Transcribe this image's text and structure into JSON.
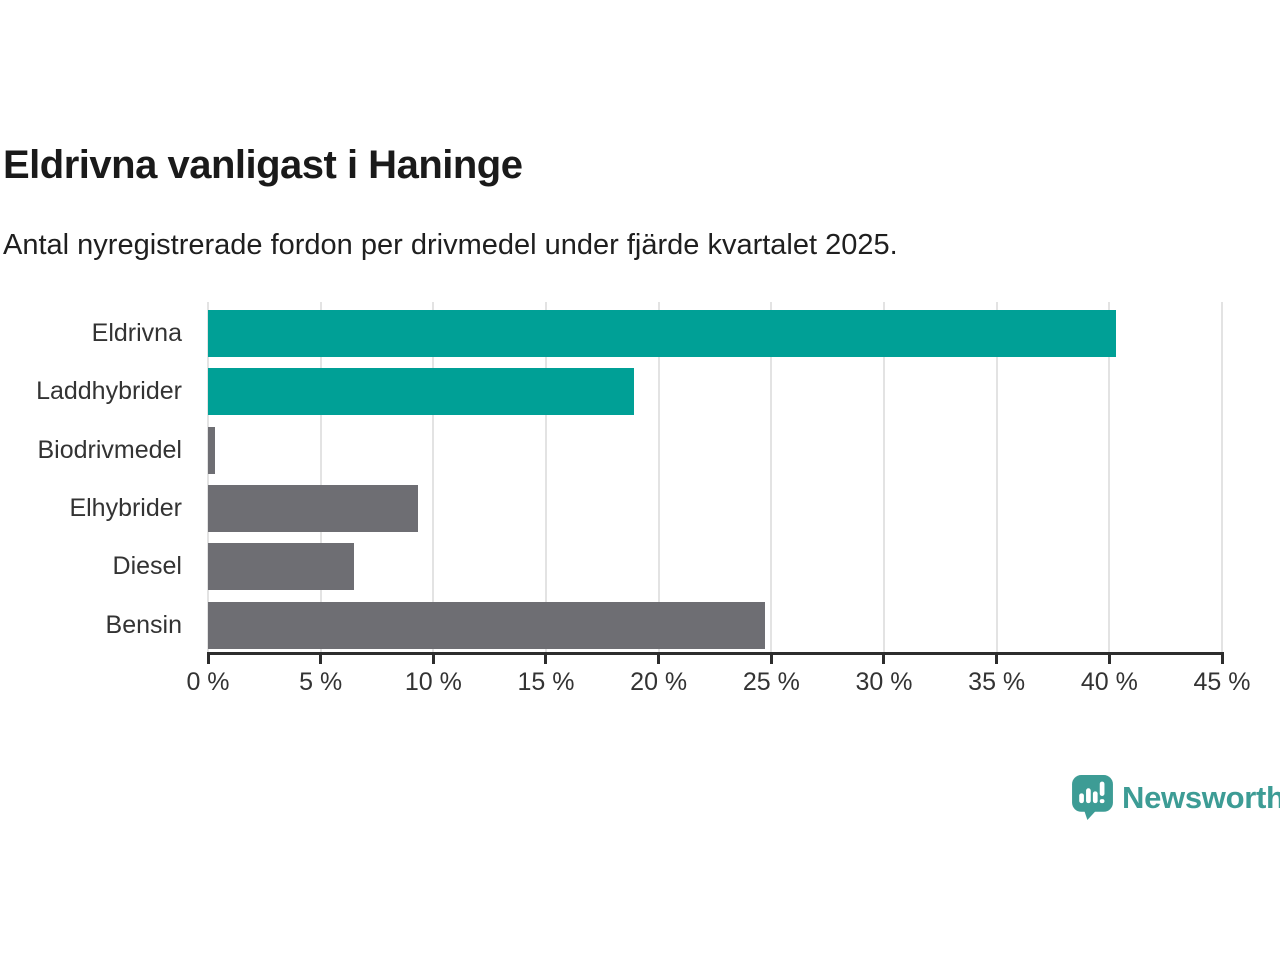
{
  "header": {
    "title": "Eldrivna vanligast i Haninge",
    "subtitle": "Antal nyregistrerade fordon per drivmedel under fjärde kvartalet 2025."
  },
  "chart_data": {
    "type": "bar",
    "orientation": "horizontal",
    "title": "Eldrivna vanligast i Haninge",
    "subtitle": "Antal nyregistrerade fordon per drivmedel under fjärde kvartalet 2025.",
    "categories": [
      "Eldrivna",
      "Laddhybrider",
      "Biodrivmedel",
      "Elhybrider",
      "Diesel",
      "Bensin"
    ],
    "values": [
      40.3,
      18.9,
      0.3,
      9.3,
      6.5,
      24.7
    ],
    "unit": "%",
    "bar_colors": [
      "#00a096",
      "#00a096",
      "#6e6e73",
      "#6e6e73",
      "#6e6e73",
      "#6e6e73"
    ],
    "xlim": [
      0,
      45
    ],
    "xticks": [
      0,
      5,
      10,
      15,
      20,
      25,
      30,
      35,
      40,
      45
    ],
    "xtick_labels": [
      "0 %",
      "5 %",
      "10 %",
      "15 %",
      "20 %",
      "25 %",
      "30 %",
      "35 %",
      "40 %",
      "45 %"
    ],
    "grid": "vertical-gridlines",
    "legend": "none"
  },
  "colors": {
    "highlight": "#00a096",
    "muted": "#6e6e73",
    "gridline": "#e3e3e3",
    "axis": "#2d2d2d",
    "tick_text": "#333333",
    "title_text": "#1a1a1a",
    "brand": "#3d9c95"
  },
  "footer": {
    "brand_name": "Newsworthy"
  }
}
